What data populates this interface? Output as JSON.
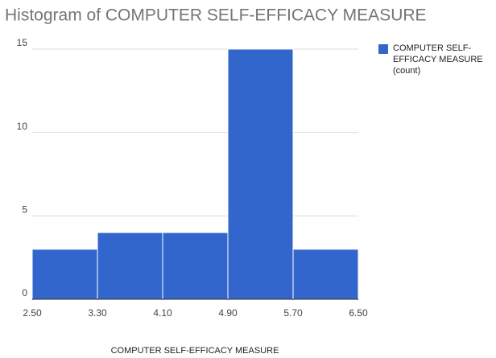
{
  "chart_data": {
    "type": "histogram",
    "title": "Histogram of COMPUTER SELF-EFFICACY MEASURE",
    "x_label": "COMPUTER SELF-EFFICACY MEASURE",
    "bins": [
      2.5,
      3.3,
      4.1,
      4.9,
      5.7,
      6.5
    ],
    "series": [
      {
        "name": "COMPUTER SELF-EFFICACY MEASURE (count)",
        "color": "#3366cc",
        "values": [
          3,
          4,
          4,
          15,
          3
        ]
      }
    ],
    "xlim": [
      2.5,
      6.5
    ],
    "xticks": [
      {
        "value": 2.5,
        "label": "2.50"
      },
      {
        "value": 3.3,
        "label": "3.30"
      },
      {
        "value": 4.1,
        "label": "4.10"
      },
      {
        "value": 4.9,
        "label": "4.90"
      },
      {
        "value": 5.7,
        "label": "5.70"
      },
      {
        "value": 6.5,
        "label": "6.50"
      }
    ],
    "ylim": [
      0,
      15
    ],
    "yticks": [
      0,
      5,
      10,
      15
    ],
    "grid": true,
    "legend": "right"
  }
}
